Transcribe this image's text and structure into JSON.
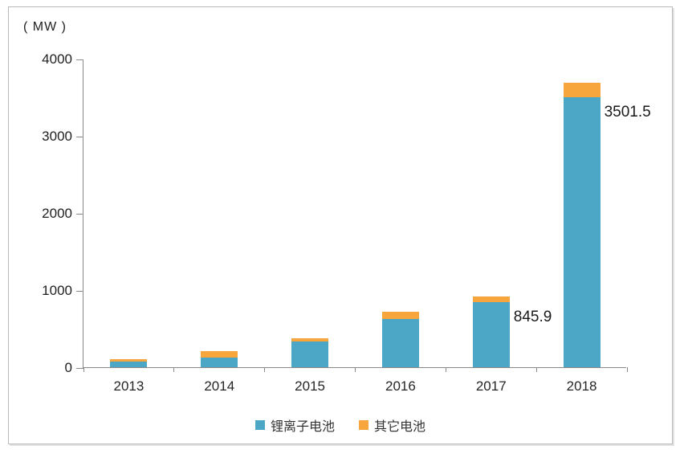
{
  "unit_label": "( MW )",
  "chart_data": {
    "type": "bar",
    "stacked": true,
    "title": "",
    "xlabel": "",
    "ylabel": "( MW )",
    "categories": [
      "2013",
      "2014",
      "2015",
      "2016",
      "2017",
      "2018"
    ],
    "series": [
      {
        "name": "锂离子电池",
        "color": "#4ba7c5",
        "values": [
          75,
          130,
          330,
          620,
          845.9,
          3501.5
        ]
      },
      {
        "name": "其它电池",
        "color": "#f6a63d",
        "values": [
          30,
          80,
          45,
          100,
          75,
          190
        ]
      }
    ],
    "ylim": [
      0,
      4000
    ],
    "yticks": [
      0,
      1000,
      2000,
      3000,
      4000
    ],
    "grid": false,
    "legend_position": "bottom",
    "annotations": [
      {
        "category": "2017",
        "series": "锂离子电池",
        "text": "845.9"
      },
      {
        "category": "2018",
        "series": "锂离子电池",
        "text": "3501.5"
      }
    ]
  },
  "colors": {
    "axis": "#898989",
    "text": "#1f1f1f",
    "frame_border": "#b9b9b9",
    "background": "#ffffff"
  }
}
